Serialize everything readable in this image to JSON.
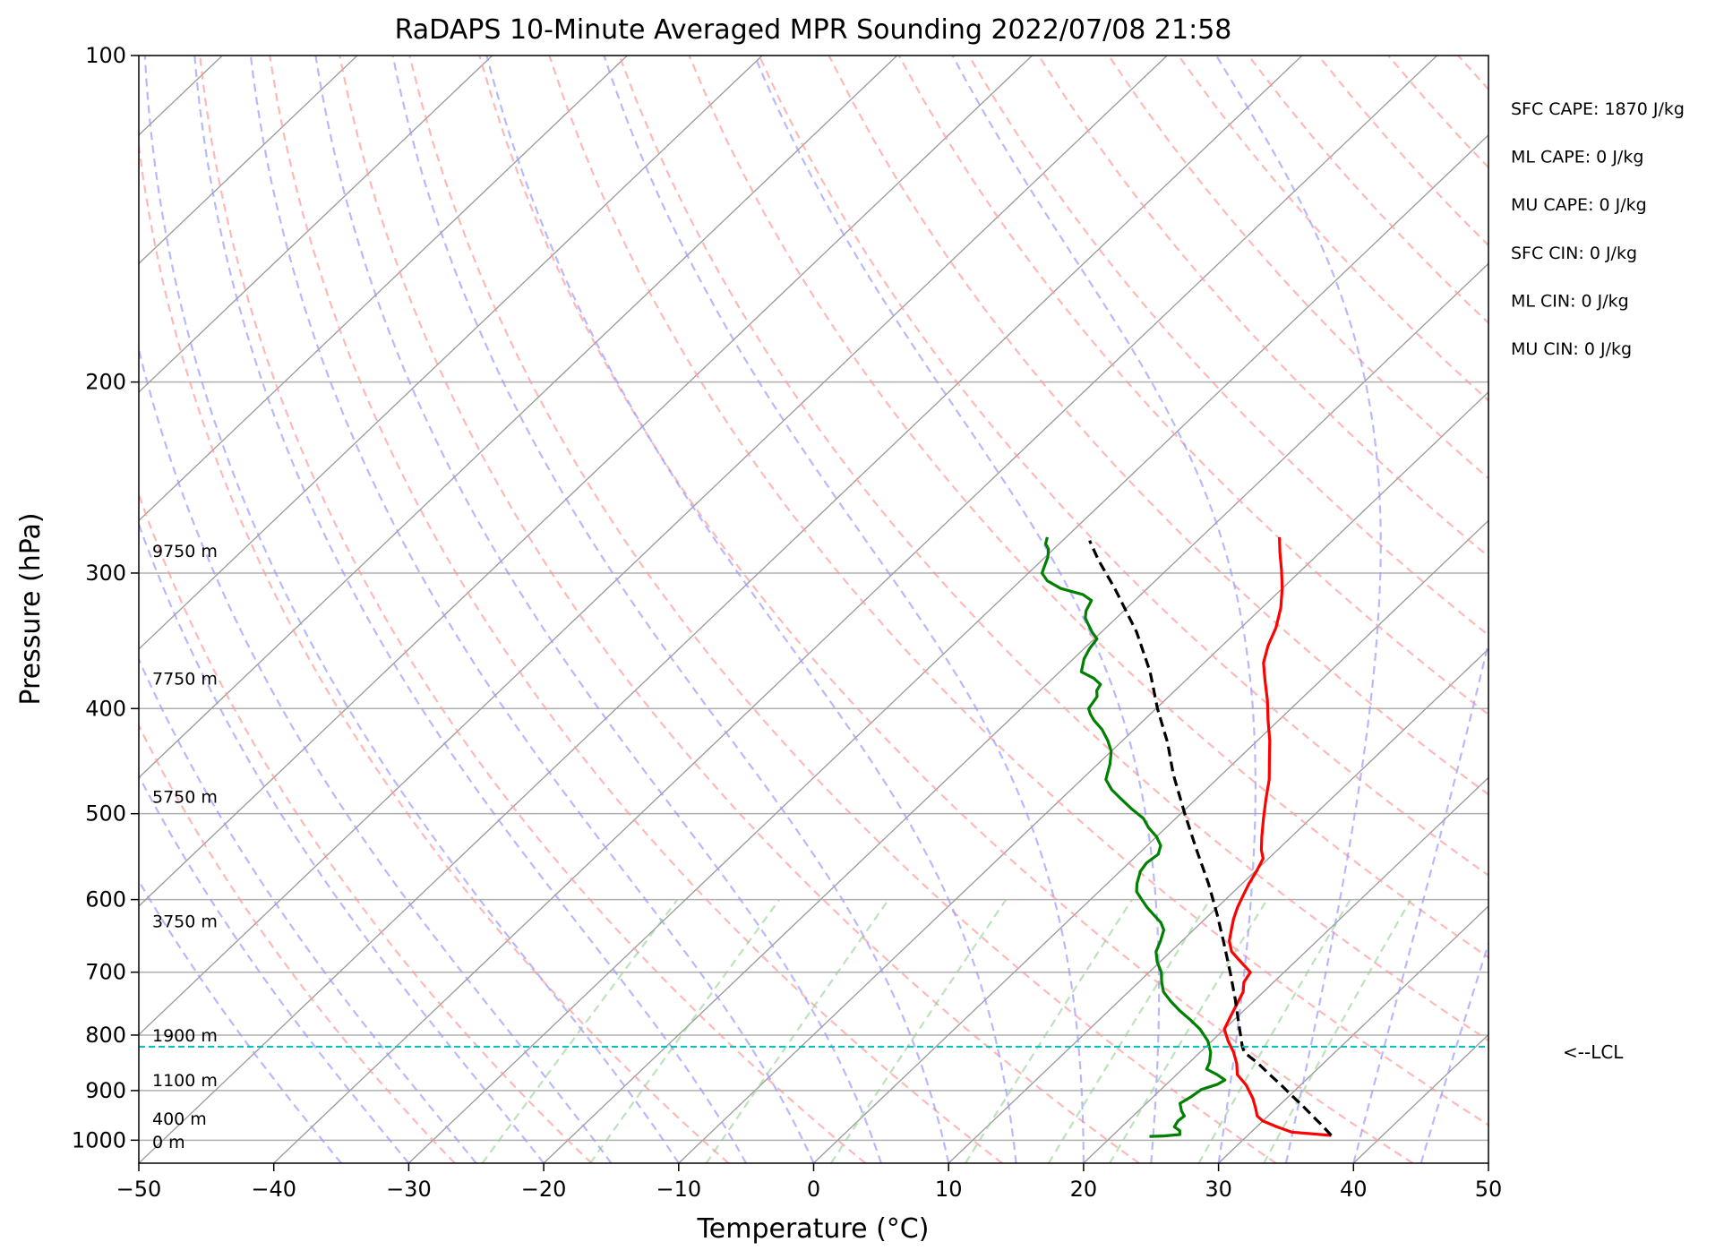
{
  "chart_data": {
    "type": "line",
    "title": "RaDAPS 10-Minute Averaged MPR Sounding 2022/07/08 21:58",
    "xlabel": "Temperature (°C)",
    "ylabel": "Pressure (hPa)",
    "xlim": [
      -50,
      50
    ],
    "ylim": [
      1050,
      100
    ],
    "y_scale": "log",
    "skew": "skew-T log-P",
    "grid": true,
    "x_ticks": [
      {
        "value": -50,
        "label": "−50"
      },
      {
        "value": -40,
        "label": "−40"
      },
      {
        "value": -30,
        "label": "−30"
      },
      {
        "value": -20,
        "label": "−20"
      },
      {
        "value": -10,
        "label": "−10"
      },
      {
        "value": 0,
        "label": "0"
      },
      {
        "value": 10,
        "label": "10"
      },
      {
        "value": 20,
        "label": "20"
      },
      {
        "value": 30,
        "label": "30"
      },
      {
        "value": 40,
        "label": "40"
      },
      {
        "value": 50,
        "label": "50"
      }
    ],
    "y_ticks": [
      {
        "value": 100,
        "label": "100"
      },
      {
        "value": 200,
        "label": "200"
      },
      {
        "value": 300,
        "label": "300"
      },
      {
        "value": 400,
        "label": "400"
      },
      {
        "value": 500,
        "label": "500"
      },
      {
        "value": 600,
        "label": "600"
      },
      {
        "value": 700,
        "label": "700"
      },
      {
        "value": 800,
        "label": "800"
      },
      {
        "value": 900,
        "label": "900"
      },
      {
        "value": 1000,
        "label": "1000"
      }
    ],
    "series": [
      {
        "color": "#ff0000",
        "style": "solid",
        "points": [
          [
            36.2,
            990
          ],
          [
            33.0,
            983
          ],
          [
            31.5,
            972
          ],
          [
            30.0,
            960
          ],
          [
            29.2,
            950
          ],
          [
            28.5,
            935
          ],
          [
            27.5,
            915
          ],
          [
            26.0,
            890
          ],
          [
            24.5,
            870
          ],
          [
            23.6,
            850
          ],
          [
            22.5,
            830
          ],
          [
            21.2,
            810
          ],
          [
            20.0,
            790
          ],
          [
            19.5,
            770
          ],
          [
            19.0,
            750
          ],
          [
            18.5,
            730
          ],
          [
            17.8,
            715
          ],
          [
            17.5,
            700
          ],
          [
            16.5,
            690
          ],
          [
            15.5,
            680
          ],
          [
            14.5,
            670
          ],
          [
            13.5,
            655
          ],
          [
            12.8,
            640
          ],
          [
            12.1,
            625
          ],
          [
            11.5,
            610
          ],
          [
            11.0,
            595
          ],
          [
            10.5,
            580
          ],
          [
            10.1,
            565
          ],
          [
            9.6,
            550
          ],
          [
            8.8,
            540
          ],
          [
            7.8,
            525
          ],
          [
            6.5,
            505
          ],
          [
            5.2,
            485
          ],
          [
            3.9,
            465
          ],
          [
            2.3,
            445
          ],
          [
            0.9,
            428
          ],
          [
            -0.8,
            410
          ],
          [
            -2.4,
            393
          ],
          [
            -4.1,
            377
          ],
          [
            -5.6,
            363
          ],
          [
            -6.6,
            350
          ],
          [
            -7.4,
            337
          ],
          [
            -8.6,
            323
          ],
          [
            -10.0,
            310
          ],
          [
            -11.5,
            298
          ],
          [
            -13.0,
            287
          ],
          [
            -14.2,
            278
          ]
        ]
      },
      {
        "color": "#008000",
        "style": "solid",
        "points": [
          [
            22.8,
            992
          ],
          [
            23.8,
            991
          ],
          [
            24.9,
            988
          ],
          [
            24.6,
            980
          ],
          [
            23.9,
            972
          ],
          [
            23.7,
            960
          ],
          [
            23.8,
            950
          ],
          [
            23.2,
            940
          ],
          [
            22.5,
            925
          ],
          [
            22.8,
            912
          ],
          [
            23.0,
            898
          ],
          [
            23.8,
            888
          ],
          [
            24.0,
            880
          ],
          [
            23.0,
            870
          ],
          [
            21.8,
            860
          ],
          [
            21.5,
            848
          ],
          [
            20.8,
            830
          ],
          [
            19.7,
            810
          ],
          [
            18.2,
            790
          ],
          [
            16.8,
            775
          ],
          [
            15.3,
            760
          ],
          [
            13.9,
            745
          ],
          [
            12.6,
            730
          ],
          [
            11.7,
            715
          ],
          [
            10.9,
            700
          ],
          [
            9.8,
            685
          ],
          [
            8.9,
            670
          ],
          [
            8.4,
            655
          ],
          [
            7.8,
            640
          ],
          [
            7.0,
            630
          ],
          [
            5.9,
            620
          ],
          [
            4.8,
            610
          ],
          [
            3.8,
            600
          ],
          [
            2.8,
            590
          ],
          [
            2.2,
            580
          ],
          [
            1.5,
            565
          ],
          [
            1.3,
            555
          ],
          [
            1.5,
            545
          ],
          [
            1.0,
            535
          ],
          [
            0.0,
            525
          ],
          [
            -1.3,
            515
          ],
          [
            -2.4,
            505
          ],
          [
            -4.0,
            495
          ],
          [
            -5.5,
            485
          ],
          [
            -7.0,
            475
          ],
          [
            -8.2,
            465
          ],
          [
            -9.1,
            450
          ],
          [
            -10.0,
            438
          ],
          [
            -11.1,
            428
          ],
          [
            -12.4,
            418
          ],
          [
            -13.7,
            410
          ],
          [
            -14.4,
            405
          ],
          [
            -15.0,
            400
          ],
          [
            -15.3,
            390
          ],
          [
            -15.8,
            385
          ],
          [
            -16.0,
            380
          ],
          [
            -17.0,
            375
          ],
          [
            -18.4,
            370
          ],
          [
            -19.2,
            360
          ],
          [
            -19.6,
            352
          ],
          [
            -19.8,
            345
          ],
          [
            -20.7,
            340
          ],
          [
            -21.5,
            335
          ],
          [
            -22.3,
            330
          ],
          [
            -22.8,
            325
          ],
          [
            -23.2,
            318
          ],
          [
            -24.3,
            314
          ],
          [
            -26.4,
            310
          ],
          [
            -28.0,
            305
          ],
          [
            -29.0,
            300
          ],
          [
            -29.4,
            295
          ],
          [
            -29.8,
            290
          ],
          [
            -30.4,
            285
          ],
          [
            -31.0,
            282
          ],
          [
            -31.4,
            278
          ]
        ]
      },
      {
        "color": "#000000",
        "style": "dashed",
        "points": [
          [
            36.2,
            990
          ],
          [
            34.8,
            970
          ],
          [
            33.3,
            950
          ],
          [
            31.8,
            930
          ],
          [
            30.2,
            910
          ],
          [
            28.6,
            890
          ],
          [
            26.9,
            870
          ],
          [
            25.2,
            850
          ],
          [
            23.3,
            830
          ],
          [
            22.7,
            820
          ],
          [
            20.6,
            780
          ],
          [
            18.4,
            740
          ],
          [
            16.0,
            700
          ],
          [
            13.4,
            660
          ],
          [
            10.6,
            620
          ],
          [
            7.5,
            580
          ],
          [
            4.0,
            540
          ],
          [
            0.3,
            500
          ],
          [
            -3.6,
            460
          ],
          [
            -6.5,
            430
          ],
          [
            -9.9,
            400
          ],
          [
            -13.3,
            370
          ],
          [
            -17.4,
            340
          ],
          [
            -22.4,
            310
          ],
          [
            -25.8,
            292
          ],
          [
            -28.0,
            280
          ]
        ]
      }
    ],
    "height_labels": [
      {
        "pressure": 286,
        "label": "9750 m"
      },
      {
        "pressure": 375,
        "label": "7750 m"
      },
      {
        "pressure": 482,
        "label": "5750 m"
      },
      {
        "pressure": 628,
        "label": "3750 m"
      },
      {
        "pressure": 800,
        "label": "1900 m"
      },
      {
        "pressure": 880,
        "label": "1100 m"
      },
      {
        "pressure": 955,
        "label": "400 m"
      },
      {
        "pressure": 1003,
        "label": "0 m"
      }
    ],
    "lcl": {
      "pressure": 820,
      "label": "<--LCL",
      "color": "#00bfbf"
    },
    "annotations": [
      "SFC CAPE: 1870 J/kg",
      "ML CAPE: 0 J/kg",
      "MU CAPE: 0 J/kg",
      "SFC CIN: 0 J/kg",
      "ML CIN: 0 J/kg",
      "MU CIN: 0 J/kg"
    ],
    "colors": {
      "temperature": "#ff0000",
      "dewpoint": "#008000",
      "parcel": "#000000",
      "lcl_line": "#00bfbf",
      "dry_adiabats": "#ff9a9a",
      "moist_adiabats": "#9a9aff",
      "mixing_ratio": "#8fcf8f",
      "isotherms": "#999999"
    }
  }
}
